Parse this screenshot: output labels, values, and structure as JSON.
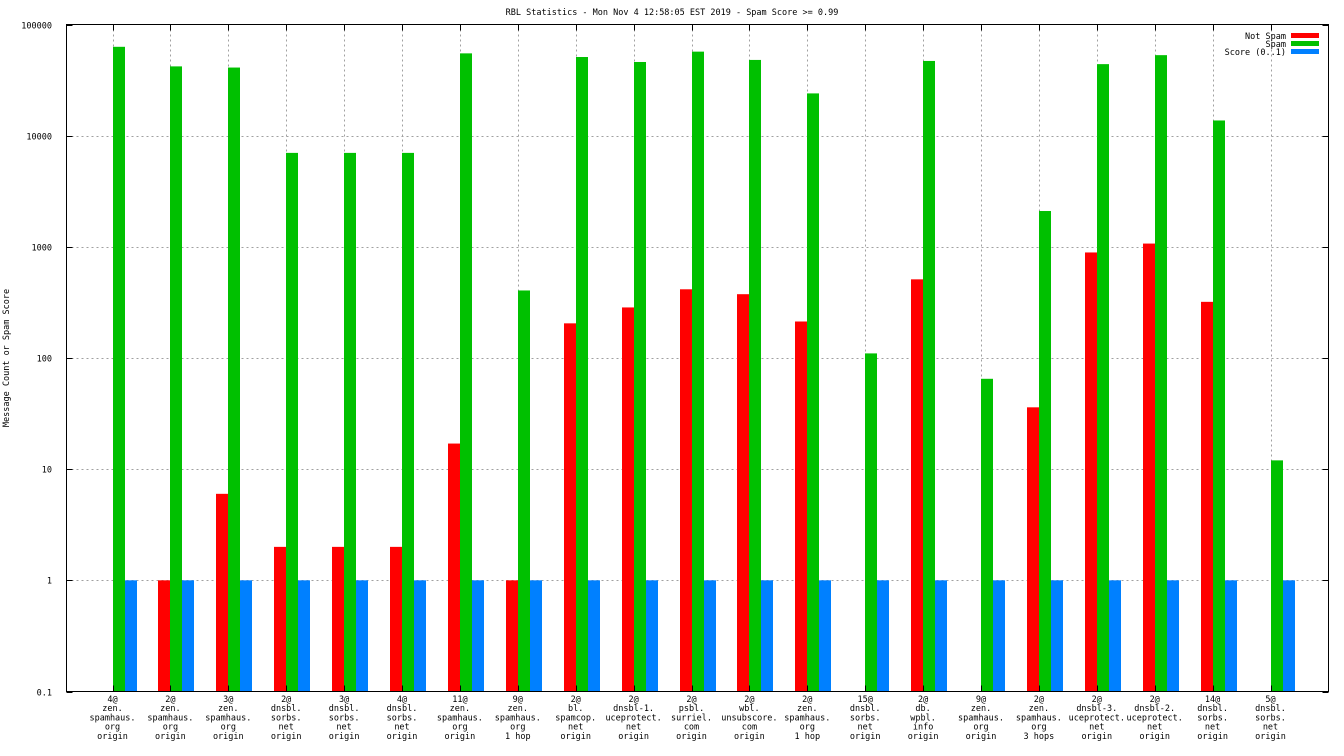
{
  "chart_data": {
    "type": "bar",
    "title": "RBL Statistics - Mon Nov  4 12:58:05 EST 2019 - Spam Score >= 0.99",
    "xlabel": "",
    "ylabel": "Message Count or Spam Score",
    "yscale": "log",
    "ylim": [
      0.1,
      100000
    ],
    "yticks": [
      "100000",
      "10000",
      "1000",
      "100",
      "10",
      "1",
      "0.1"
    ],
    "grid": true,
    "legend_placement": "top-right",
    "categories": [
      [
        "4@",
        "zen.",
        "spamhaus.",
        "org",
        "origin"
      ],
      [
        "2@",
        "zen.",
        "spamhaus.",
        "org",
        "origin"
      ],
      [
        "3@",
        "zen.",
        "spamhaus.",
        "org",
        "origin"
      ],
      [
        "2@",
        "dnsbl.",
        "sorbs.",
        "net",
        "origin"
      ],
      [
        "3@",
        "dnsbl.",
        "sorbs.",
        "net",
        "origin"
      ],
      [
        "4@",
        "dnsbl.",
        "sorbs.",
        "net",
        "origin"
      ],
      [
        "11@",
        "zen.",
        "spamhaus.",
        "org",
        "origin"
      ],
      [
        "9@",
        "zen.",
        "spamhaus.",
        "org",
        "1 hop"
      ],
      [
        "2@",
        "bl.",
        "spamcop.",
        "net",
        "origin"
      ],
      [
        "2@",
        "dnsbl-1.",
        "uceprotect.",
        "net",
        "origin"
      ],
      [
        "2@",
        "psbl.",
        "surriel.",
        "com",
        "origin"
      ],
      [
        "2@",
        "wbl.",
        "unsubscore.",
        "com",
        "origin"
      ],
      [
        "2@",
        "zen.",
        "spamhaus.",
        "org",
        "1 hop"
      ],
      [
        "15@",
        "dnsbl.",
        "sorbs.",
        "net",
        "origin"
      ],
      [
        "2@",
        "db.",
        "wpbl.",
        "info",
        "origin"
      ],
      [
        "9@",
        "zen.",
        "spamhaus.",
        "org",
        "origin"
      ],
      [
        "2@",
        "zen.",
        "spamhaus.",
        "org",
        "3 hops"
      ],
      [
        "2@",
        "dnsbl-3.",
        "uceprotect.",
        "net",
        "origin"
      ],
      [
        "2@",
        "dnsbl-2.",
        "uceprotect.",
        "net",
        "origin"
      ],
      [
        "14@",
        "dnsbl.",
        "sorbs.",
        "net",
        "origin"
      ],
      [
        "5@",
        "dnsbl.",
        "sorbs.",
        "net",
        "origin"
      ]
    ],
    "series": [
      {
        "name": "Not Spam",
        "color": "#ff0000",
        "values": [
          0,
          1,
          6,
          2,
          2,
          2,
          17,
          1,
          205,
          285,
          415,
          375,
          213,
          0,
          510,
          0,
          36,
          890,
          1070,
          320,
          0
        ]
      },
      {
        "name": "Spam",
        "color": "#00c000",
        "values": [
          63000,
          42000,
          41000,
          7000,
          7000,
          7000,
          55000,
          405,
          51000,
          46000,
          57000,
          48000,
          24000,
          110,
          47000,
          65,
          2100,
          44000,
          53000,
          13700,
          12
        ]
      },
      {
        "name": "Score (0..1)",
        "color": "#0080ff",
        "values": [
          1,
          1,
          1,
          1,
          1,
          1,
          1,
          1,
          1,
          1,
          1,
          1,
          1,
          1,
          1,
          1,
          1,
          1,
          1,
          1,
          1
        ]
      }
    ]
  }
}
